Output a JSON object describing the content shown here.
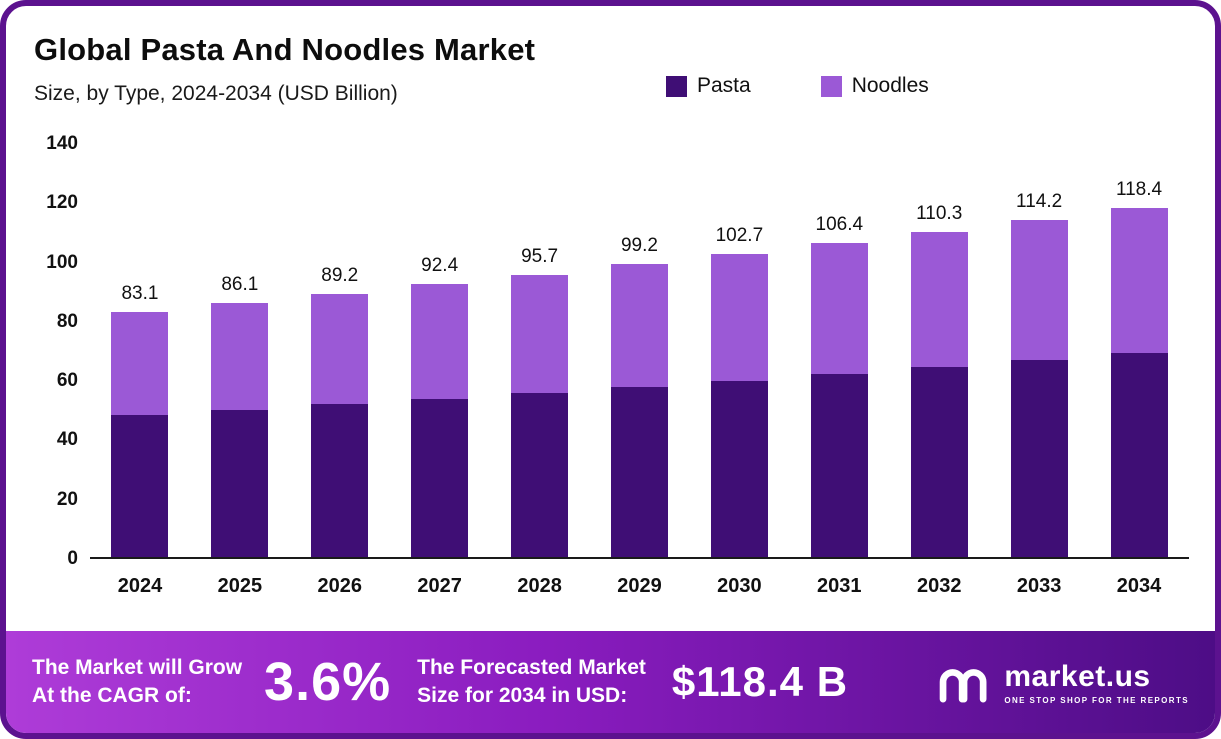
{
  "chart_data": {
    "type": "bar",
    "stacked": true,
    "title": "Global Pasta And Noodles Market",
    "subtitle": "Size, by Type, 2024-2034 (USD Billion)",
    "categories": [
      "2024",
      "2025",
      "2026",
      "2027",
      "2028",
      "2029",
      "2030",
      "2031",
      "2032",
      "2033",
      "2034"
    ],
    "series": [
      {
        "name": "Pasta",
        "color": "#3f0e75",
        "values": [
          48.0,
          50.0,
          51.8,
          53.6,
          55.6,
          57.7,
          59.8,
          62.0,
          64.3,
          66.7,
          69.2
        ]
      },
      {
        "name": "Noodles",
        "color": "#9b59d6",
        "values": [
          35.1,
          36.1,
          37.4,
          38.8,
          40.1,
          41.5,
          42.9,
          44.4,
          46.0,
          47.5,
          49.2
        ]
      }
    ],
    "totals": [
      83.1,
      86.1,
      89.2,
      92.4,
      95.7,
      99.2,
      102.7,
      106.4,
      110.3,
      114.2,
      118.4
    ],
    "ylim": [
      0,
      140
    ],
    "yticks": [
      0,
      20,
      40,
      60,
      80,
      100,
      120,
      140
    ],
    "xlabel": "",
    "ylabel": "",
    "grid": false,
    "legend_position": "top"
  },
  "banner": {
    "left_line1": "The Market will Grow",
    "left_line2": "At the CAGR of:",
    "cagr": "3.6%",
    "mid_line1": "The Forecasted Market",
    "mid_line2": "Size for 2034 in USD:",
    "forecast": "$118.4 B",
    "brand": "market.us",
    "brand_tagline": "ONE STOP SHOP FOR THE REPORTS"
  },
  "colors": {
    "pasta": "#3f0e75",
    "noodles": "#9b59d6",
    "border": "#5c128f",
    "banner_start": "#ae3cd8",
    "banner_end": "#4d0d86"
  }
}
